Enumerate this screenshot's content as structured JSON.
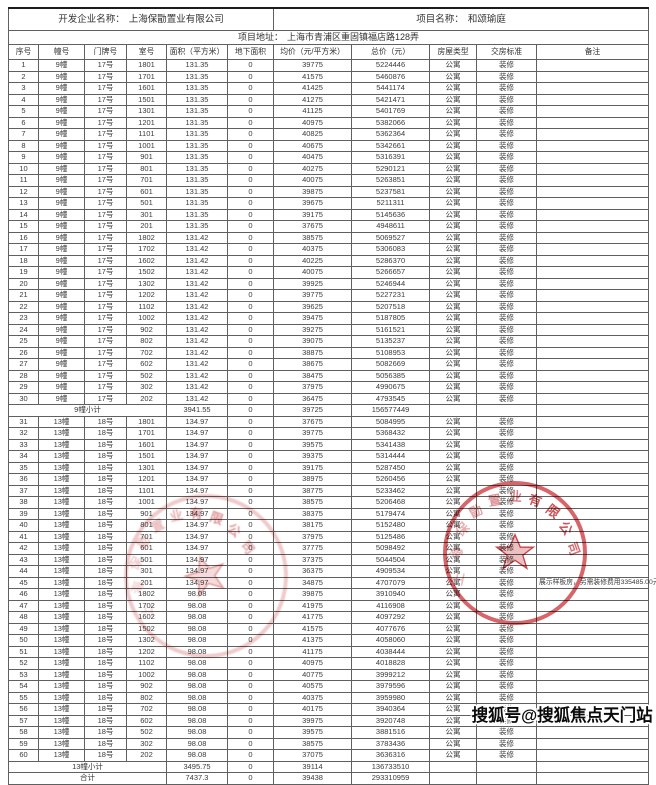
{
  "header": {
    "developer_label": "开发企业名称：",
    "developer_name": "上海保勖置业有限公司",
    "project_label": "项目名称：",
    "project_name": "和颂瑜庭",
    "address_label": "项目地址：",
    "address_value": "上海市青浦区重固镇福店路128弄"
  },
  "table": {
    "columns": [
      "序号",
      "幢号",
      "门牌号",
      "室号",
      "面积（平方米）",
      "地下面积",
      "均价（元/平方米）",
      "总价（元）",
      "房屋类型",
      "交房标准",
      "备注"
    ],
    "rows": [
      {
        "t": "d",
        "c": [
          "1",
          "9幢",
          "17号",
          "1801",
          "131.35",
          "0",
          "39775",
          "5224446",
          "公寓",
          "装修",
          ""
        ]
      },
      {
        "t": "d",
        "c": [
          "2",
          "9幢",
          "17号",
          "1701",
          "131.35",
          "0",
          "41575",
          "5460876",
          "公寓",
          "装修",
          ""
        ]
      },
      {
        "t": "d",
        "c": [
          "3",
          "9幢",
          "17号",
          "1601",
          "131.35",
          "0",
          "41425",
          "5441174",
          "公寓",
          "装修",
          ""
        ]
      },
      {
        "t": "d",
        "c": [
          "4",
          "9幢",
          "17号",
          "1501",
          "131.35",
          "0",
          "41275",
          "5421471",
          "公寓",
          "装修",
          ""
        ]
      },
      {
        "t": "d",
        "c": [
          "5",
          "9幢",
          "17号",
          "1301",
          "131.35",
          "0",
          "41125",
          "5401769",
          "公寓",
          "装修",
          ""
        ]
      },
      {
        "t": "d",
        "c": [
          "6",
          "9幢",
          "17号",
          "1201",
          "131.35",
          "0",
          "40975",
          "5382066",
          "公寓",
          "装修",
          ""
        ]
      },
      {
        "t": "d",
        "c": [
          "7",
          "9幢",
          "17号",
          "1101",
          "131.35",
          "0",
          "40825",
          "5362364",
          "公寓",
          "装修",
          ""
        ]
      },
      {
        "t": "d",
        "c": [
          "8",
          "9幢",
          "17号",
          "1001",
          "131.35",
          "0",
          "40675",
          "5342661",
          "公寓",
          "装修",
          ""
        ]
      },
      {
        "t": "d",
        "c": [
          "9",
          "9幢",
          "17号",
          "901",
          "131.35",
          "0",
          "40475",
          "5316391",
          "公寓",
          "装修",
          ""
        ]
      },
      {
        "t": "d",
        "c": [
          "10",
          "9幢",
          "17号",
          "801",
          "131.35",
          "0",
          "40275",
          "5290121",
          "公寓",
          "装修",
          ""
        ]
      },
      {
        "t": "d",
        "c": [
          "11",
          "9幢",
          "17号",
          "701",
          "131.35",
          "0",
          "40075",
          "5263851",
          "公寓",
          "装修",
          ""
        ]
      },
      {
        "t": "d",
        "c": [
          "12",
          "9幢",
          "17号",
          "601",
          "131.35",
          "0",
          "39875",
          "5237581",
          "公寓",
          "装修",
          ""
        ]
      },
      {
        "t": "d",
        "c": [
          "13",
          "9幢",
          "17号",
          "501",
          "131.35",
          "0",
          "39675",
          "5211311",
          "公寓",
          "装修",
          ""
        ]
      },
      {
        "t": "d",
        "c": [
          "14",
          "9幢",
          "17号",
          "301",
          "131.35",
          "0",
          "39175",
          "5145636",
          "公寓",
          "装修",
          ""
        ]
      },
      {
        "t": "d",
        "c": [
          "15",
          "9幢",
          "17号",
          "201",
          "131.35",
          "0",
          "37675",
          "4948611",
          "公寓",
          "装修",
          ""
        ]
      },
      {
        "t": "d",
        "c": [
          "16",
          "9幢",
          "17号",
          "1802",
          "131.42",
          "0",
          "38575",
          "5069527",
          "公寓",
          "装修",
          ""
        ]
      },
      {
        "t": "d",
        "c": [
          "17",
          "9幢",
          "17号",
          "1702",
          "131.42",
          "0",
          "40375",
          "5306083",
          "公寓",
          "装修",
          ""
        ]
      },
      {
        "t": "d",
        "c": [
          "18",
          "9幢",
          "17号",
          "1602",
          "131.42",
          "0",
          "40225",
          "5286370",
          "公寓",
          "装修",
          ""
        ]
      },
      {
        "t": "d",
        "c": [
          "19",
          "9幢",
          "17号",
          "1502",
          "131.42",
          "0",
          "40075",
          "5266657",
          "公寓",
          "装修",
          ""
        ]
      },
      {
        "t": "d",
        "c": [
          "20",
          "9幢",
          "17号",
          "1302",
          "131.42",
          "0",
          "39925",
          "5246944",
          "公寓",
          "装修",
          ""
        ]
      },
      {
        "t": "d",
        "c": [
          "21",
          "9幢",
          "17号",
          "1202",
          "131.42",
          "0",
          "39775",
          "5227231",
          "公寓",
          "装修",
          ""
        ]
      },
      {
        "t": "d",
        "c": [
          "22",
          "9幢",
          "17号",
          "1102",
          "131.42",
          "0",
          "39625",
          "5207518",
          "公寓",
          "装修",
          ""
        ]
      },
      {
        "t": "d",
        "c": [
          "23",
          "9幢",
          "17号",
          "1002",
          "131.42",
          "0",
          "39475",
          "5187805",
          "公寓",
          "装修",
          ""
        ]
      },
      {
        "t": "d",
        "c": [
          "24",
          "9幢",
          "17号",
          "902",
          "131.42",
          "0",
          "39275",
          "5161521",
          "公寓",
          "装修",
          ""
        ]
      },
      {
        "t": "d",
        "c": [
          "25",
          "9幢",
          "17号",
          "802",
          "131.42",
          "0",
          "39075",
          "5135237",
          "公寓",
          "装修",
          ""
        ]
      },
      {
        "t": "d",
        "c": [
          "26",
          "9幢",
          "17号",
          "702",
          "131.42",
          "0",
          "38875",
          "5108953",
          "公寓",
          "装修",
          ""
        ]
      },
      {
        "t": "d",
        "c": [
          "27",
          "9幢",
          "17号",
          "602",
          "131.42",
          "0",
          "38675",
          "5082669",
          "公寓",
          "装修",
          ""
        ]
      },
      {
        "t": "d",
        "c": [
          "28",
          "9幢",
          "17号",
          "502",
          "131.42",
          "0",
          "38475",
          "5056385",
          "公寓",
          "装修",
          ""
        ]
      },
      {
        "t": "d",
        "c": [
          "29",
          "9幢",
          "17号",
          "302",
          "131.42",
          "0",
          "37975",
          "4990675",
          "公寓",
          "装修",
          ""
        ]
      },
      {
        "t": "d",
        "c": [
          "30",
          "9幢",
          "17号",
          "202",
          "131.42",
          "0",
          "36475",
          "4793545",
          "公寓",
          "装修",
          ""
        ]
      },
      {
        "t": "s",
        "c": [
          "9幢小计",
          "3941.55",
          "0",
          "39725",
          "156577449",
          "",
          "",
          ""
        ]
      },
      {
        "t": "d",
        "c": [
          "31",
          "13幢",
          "18号",
          "1801",
          "134.97",
          "0",
          "37675",
          "5084995",
          "公寓",
          "装修",
          ""
        ]
      },
      {
        "t": "d",
        "c": [
          "32",
          "13幢",
          "18号",
          "1701",
          "134.97",
          "0",
          "39775",
          "5368432",
          "公寓",
          "装修",
          ""
        ]
      },
      {
        "t": "d",
        "c": [
          "33",
          "13幢",
          "18号",
          "1601",
          "134.97",
          "0",
          "39575",
          "5341438",
          "公寓",
          "装修",
          ""
        ]
      },
      {
        "t": "d",
        "c": [
          "34",
          "13幢",
          "18号",
          "1501",
          "134.97",
          "0",
          "39375",
          "5314444",
          "公寓",
          "装修",
          ""
        ]
      },
      {
        "t": "d",
        "c": [
          "35",
          "13幢",
          "18号",
          "1301",
          "134.97",
          "0",
          "39175",
          "5287450",
          "公寓",
          "装修",
          ""
        ]
      },
      {
        "t": "d",
        "c": [
          "36",
          "13幢",
          "18号",
          "1201",
          "134.97",
          "0",
          "38975",
          "5260456",
          "公寓",
          "装修",
          ""
        ]
      },
      {
        "t": "d",
        "c": [
          "37",
          "13幢",
          "18号",
          "1101",
          "134.97",
          "0",
          "38775",
          "5233462",
          "公寓",
          "装修",
          ""
        ]
      },
      {
        "t": "d",
        "c": [
          "38",
          "13幢",
          "18号",
          "1001",
          "134.97",
          "0",
          "38575",
          "5206468",
          "公寓",
          "装修",
          ""
        ]
      },
      {
        "t": "d",
        "c": [
          "39",
          "13幢",
          "18号",
          "901",
          "134.97",
          "0",
          "38375",
          "5179474",
          "公寓",
          "装修",
          ""
        ]
      },
      {
        "t": "d",
        "c": [
          "40",
          "13幢",
          "18号",
          "801",
          "134.97",
          "0",
          "38175",
          "5152480",
          "公寓",
          "装修",
          ""
        ]
      },
      {
        "t": "d",
        "c": [
          "41",
          "13幢",
          "18号",
          "701",
          "134.97",
          "0",
          "37975",
          "5125486",
          "公寓",
          "装修",
          ""
        ]
      },
      {
        "t": "d",
        "c": [
          "42",
          "13幢",
          "18号",
          "601",
          "134.97",
          "0",
          "37775",
          "5098492",
          "公寓",
          "装修",
          ""
        ]
      },
      {
        "t": "d",
        "c": [
          "43",
          "13幢",
          "18号",
          "501",
          "134.97",
          "0",
          "37375",
          "5044504",
          "公寓",
          "装修",
          ""
        ]
      },
      {
        "t": "d",
        "c": [
          "44",
          "13幢",
          "18号",
          "301",
          "134.97",
          "0",
          "36375",
          "4909534",
          "公寓",
          "装修",
          ""
        ]
      },
      {
        "t": "d",
        "c": [
          "45",
          "13幢",
          "18号",
          "201",
          "134.97",
          "0",
          "34875",
          "4707079",
          "公寓",
          "装修",
          "展示样板房，另需装修费用335485.00元"
        ]
      },
      {
        "t": "d",
        "c": [
          "46",
          "13幢",
          "18号",
          "1802",
          "98.08",
          "0",
          "39875",
          "3910940",
          "公寓",
          "装修",
          ""
        ]
      },
      {
        "t": "d",
        "c": [
          "47",
          "13幢",
          "18号",
          "1702",
          "98.08",
          "0",
          "41975",
          "4116908",
          "公寓",
          "装修",
          ""
        ]
      },
      {
        "t": "d",
        "c": [
          "48",
          "13幢",
          "18号",
          "1602",
          "98.08",
          "0",
          "41775",
          "4097292",
          "公寓",
          "装修",
          ""
        ]
      },
      {
        "t": "d",
        "c": [
          "49",
          "13幢",
          "18号",
          "1502",
          "98.08",
          "0",
          "41575",
          "4077676",
          "公寓",
          "装修",
          ""
        ]
      },
      {
        "t": "d",
        "c": [
          "50",
          "13幢",
          "18号",
          "1302",
          "98.08",
          "0",
          "41375",
          "4058060",
          "公寓",
          "装修",
          ""
        ]
      },
      {
        "t": "d",
        "c": [
          "51",
          "13幢",
          "18号",
          "1202",
          "98.08",
          "0",
          "41175",
          "4038444",
          "公寓",
          "装修",
          ""
        ]
      },
      {
        "t": "d",
        "c": [
          "52",
          "13幢",
          "18号",
          "1102",
          "98.08",
          "0",
          "40975",
          "4018828",
          "公寓",
          "装修",
          ""
        ]
      },
      {
        "t": "d",
        "c": [
          "53",
          "13幢",
          "18号",
          "1002",
          "98.08",
          "0",
          "40775",
          "3999212",
          "公寓",
          "装修",
          ""
        ]
      },
      {
        "t": "d",
        "c": [
          "54",
          "13幢",
          "18号",
          "902",
          "98.08",
          "0",
          "40575",
          "3979596",
          "公寓",
          "装修",
          ""
        ]
      },
      {
        "t": "d",
        "c": [
          "55",
          "13幢",
          "18号",
          "802",
          "98.08",
          "0",
          "40375",
          "3959980",
          "公寓",
          "装修",
          ""
        ]
      },
      {
        "t": "d",
        "c": [
          "56",
          "13幢",
          "18号",
          "702",
          "98.08",
          "0",
          "40175",
          "3940364",
          "公寓",
          "装修",
          ""
        ]
      },
      {
        "t": "d",
        "c": [
          "57",
          "13幢",
          "18号",
          "602",
          "98.08",
          "0",
          "39975",
          "3920748",
          "公寓",
          "装修",
          ""
        ]
      },
      {
        "t": "d",
        "c": [
          "58",
          "13幢",
          "18号",
          "502",
          "98.08",
          "0",
          "39575",
          "3881516",
          "公寓",
          "装修",
          ""
        ]
      },
      {
        "t": "d",
        "c": [
          "59",
          "13幢",
          "18号",
          "302",
          "98.08",
          "0",
          "38575",
          "3783436",
          "公寓",
          "装修",
          ""
        ]
      },
      {
        "t": "d",
        "c": [
          "60",
          "13幢",
          "18号",
          "202",
          "98.08",
          "0",
          "37075",
          "3636316",
          "公寓",
          "装修",
          ""
        ]
      },
      {
        "t": "s",
        "c": [
          "13幢小计",
          "3495.75",
          "0",
          "39114",
          "136733510",
          "",
          "",
          ""
        ]
      },
      {
        "t": "s",
        "c": [
          "合计",
          "7437.3",
          "0",
          "39438",
          "293310959",
          "",
          "",
          ""
        ]
      }
    ]
  },
  "stamps": {
    "seal_text_chars": [
      "上",
      "海",
      "保",
      "勖",
      "置",
      "业",
      "有",
      "限",
      "公",
      "司"
    ],
    "seal_color": "#c12a30"
  },
  "watermark": {
    "text": "搜狐号@搜狐焦点天门站"
  }
}
